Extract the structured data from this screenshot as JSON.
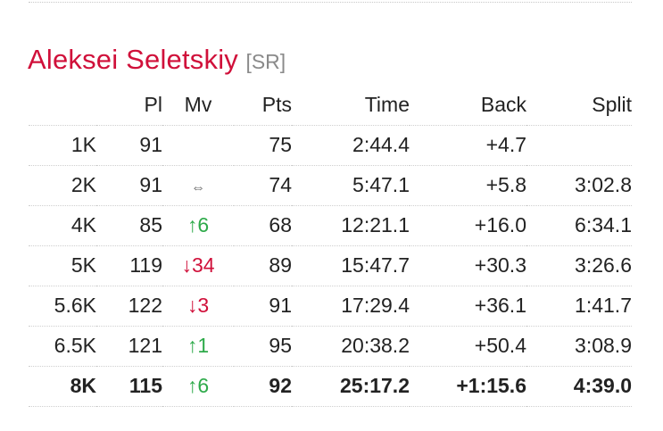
{
  "athlete": {
    "name": "Aleksei Seletskiy",
    "code": "[SR]"
  },
  "columns": {
    "split_label": "",
    "place": "Pl",
    "move": "Mv",
    "points": "Pts",
    "time": "Time",
    "back": "Back",
    "split": "Split"
  },
  "rows": [
    {
      "label": "1K",
      "place": "91",
      "move_arrow": "",
      "move_value": "",
      "move_dir": "none",
      "points": "75",
      "time": "2:44.4",
      "back": "+4.7",
      "split": ""
    },
    {
      "label": "2K",
      "place": "91",
      "move_arrow": "⇔",
      "move_value": "",
      "move_dir": "same",
      "points": "74",
      "time": "5:47.1",
      "back": "+5.8",
      "split": "3:02.8"
    },
    {
      "label": "4K",
      "place": "85",
      "move_arrow": "↑",
      "move_value": "6",
      "move_dir": "up",
      "points": "68",
      "time": "12:21.1",
      "back": "+16.0",
      "split": "6:34.1"
    },
    {
      "label": "5K",
      "place": "119",
      "move_arrow": "↓",
      "move_value": "34",
      "move_dir": "down",
      "points": "89",
      "time": "15:47.7",
      "back": "+30.3",
      "split": "3:26.6"
    },
    {
      "label": "5.6K",
      "place": "122",
      "move_arrow": "↓",
      "move_value": "3",
      "move_dir": "down",
      "points": "91",
      "time": "17:29.4",
      "back": "+36.1",
      "split": "1:41.7"
    },
    {
      "label": "6.5K",
      "place": "121",
      "move_arrow": "↑",
      "move_value": "1",
      "move_dir": "up",
      "points": "95",
      "time": "20:38.2",
      "back": "+50.4",
      "split": "3:08.9"
    },
    {
      "label": "8K",
      "place": "115",
      "move_arrow": "↑",
      "move_value": "6",
      "move_dir": "up",
      "points": "92",
      "time": "25:17.2",
      "back": "+1:15.6",
      "split": "4:39.0"
    }
  ],
  "colors": {
    "name": "#d0103a",
    "move_up": "#2eaa4a",
    "move_down": "#d0103a"
  }
}
